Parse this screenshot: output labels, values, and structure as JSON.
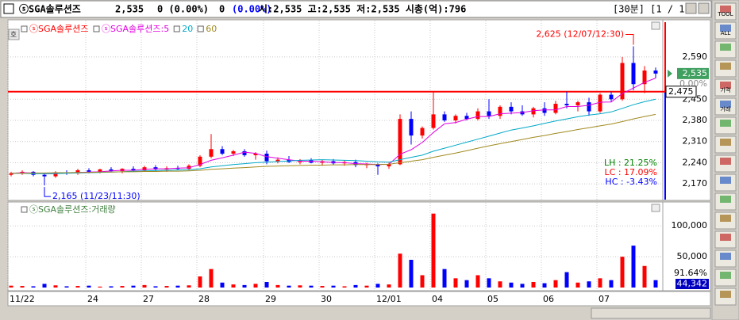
{
  "header": {
    "name": "ⓢSGA솔루션즈",
    "price": "2,535",
    "change": "0 (0.00%)",
    "volume": "0",
    "volume_change": "(0.00%)",
    "ohlc": "시:2,535 고:2,535 저:2,535 시총(억):796",
    "period": "[30분] [1 / 1]"
  },
  "toolbar": [
    "TOOL",
    "ALL",
    "가격",
    "거래"
  ],
  "chart_data": [
    {
      "type": "candlestick",
      "name": "ⓢSGA솔루션즈",
      "side_label": "호",
      "categories": [
        "11/22",
        null,
        null,
        null,
        null,
        null,
        null,
        "24",
        null,
        null,
        null,
        null,
        "27",
        null,
        null,
        null,
        null,
        "28",
        null,
        null,
        null,
        null,
        null,
        "29",
        null,
        null,
        null,
        null,
        "30",
        null,
        null,
        null,
        null,
        "12/01",
        null,
        null,
        null,
        null,
        "04",
        null,
        null,
        null,
        null,
        "05",
        null,
        null,
        null,
        null,
        "06",
        null,
        null,
        null,
        null,
        "07",
        null,
        null,
        null,
        null,
        null
      ],
      "open": [
        2200,
        2205,
        2210,
        2200,
        2195,
        2208,
        2205,
        2215,
        2210,
        2218,
        2212,
        2220,
        2215,
        2225,
        2218,
        2222,
        2220,
        2230,
        2260,
        2285,
        2270,
        2278,
        2265,
        2270,
        2245,
        2250,
        2242,
        2248,
        2240,
        2245,
        2238,
        2242,
        2232,
        2235,
        2228,
        2235,
        2385,
        2330,
        2355,
        2400,
        2380,
        2395,
        2385,
        2410,
        2395,
        2425,
        2410,
        2400,
        2420,
        2405,
        2435,
        2430,
        2440,
        2410,
        2465,
        2450,
        2570,
        2500,
        2545
      ],
      "high": [
        2210,
        2215,
        2212,
        2205,
        2212,
        2215,
        2220,
        2222,
        2220,
        2225,
        2222,
        2228,
        2230,
        2232,
        2228,
        2230,
        2235,
        2265,
        2335,
        2295,
        2282,
        2285,
        2275,
        2280,
        2258,
        2262,
        2252,
        2255,
        2250,
        2252,
        2248,
        2250,
        2240,
        2238,
        2240,
        2400,
        2410,
        2360,
        2475,
        2410,
        2400,
        2405,
        2420,
        2450,
        2430,
        2440,
        2430,
        2425,
        2440,
        2445,
        2475,
        2445,
        2455,
        2470,
        2475,
        2590,
        2625,
        2560,
        2555
      ],
      "low": [
        2195,
        2200,
        2195,
        2165,
        2190,
        2200,
        2200,
        2205,
        2205,
        2210,
        2205,
        2212,
        2210,
        2215,
        2210,
        2215,
        2215,
        2225,
        2255,
        2265,
        2262,
        2260,
        2250,
        2235,
        2238,
        2240,
        2235,
        2238,
        2230,
        2232,
        2230,
        2225,
        2222,
        2200,
        2220,
        2232,
        2300,
        2320,
        2350,
        2375,
        2370,
        2380,
        2380,
        2385,
        2385,
        2400,
        2395,
        2390,
        2395,
        2400,
        2420,
        2410,
        2395,
        2405,
        2440,
        2445,
        2480,
        2470,
        2520
      ],
      "close": [
        2205,
        2210,
        2200,
        2195,
        2208,
        2205,
        2215,
        2210,
        2218,
        2212,
        2220,
        2215,
        2225,
        2218,
        2222,
        2220,
        2230,
        2260,
        2285,
        2270,
        2278,
        2265,
        2270,
        2245,
        2250,
        2242,
        2248,
        2240,
        2245,
        2238,
        2242,
        2232,
        2235,
        2228,
        2235,
        2385,
        2330,
        2355,
        2400,
        2380,
        2395,
        2385,
        2410,
        2395,
        2425,
        2410,
        2400,
        2420,
        2405,
        2435,
        2430,
        2440,
        2410,
        2465,
        2450,
        2570,
        2500,
        2545,
        2535
      ],
      "series": [
        {
          "name": "ⓢSGA솔루션즈:5",
          "color": "#e000e0",
          "values": [
            2205,
            2207,
            2206,
            2204,
            2204,
            2206,
            2208,
            2209,
            2210,
            2213,
            2215,
            2215,
            2218,
            2220,
            2220,
            2222,
            2223,
            2234,
            2248,
            2256,
            2265,
            2275,
            2271,
            2260,
            2255,
            2250,
            2245,
            2245,
            2243,
            2241,
            2240,
            2237,
            2236,
            2234,
            2235,
            2268,
            2283,
            2307,
            2340,
            2369,
            2373,
            2384,
            2393,
            2393,
            2402,
            2404,
            2406,
            2412,
            2415,
            2415,
            2426,
            2426,
            2430,
            2440,
            2441,
            2469,
            2487,
            2506,
            2520
          ]
        },
        {
          "name": "20",
          "color": "#00a8c8",
          "values": [
            2205,
            2205,
            2204,
            2204,
            2204,
            2205,
            2206,
            2207,
            2208,
            2209,
            2210,
            2212,
            2213,
            2214,
            2215,
            2216,
            2217,
            2220,
            2226,
            2230,
            2234,
            2237,
            2240,
            2242,
            2244,
            2246,
            2248,
            2249,
            2250,
            2249,
            2248,
            2247,
            2245,
            2243,
            2242,
            2250,
            2258,
            2265,
            2278,
            2288,
            2298,
            2308,
            2318,
            2328,
            2338,
            2348,
            2355,
            2362,
            2370,
            2378,
            2385,
            2392,
            2398,
            2402,
            2408,
            2420,
            2432,
            2442,
            2450
          ]
        },
        {
          "name": "60",
          "color": "#a08a20",
          "values": [
            2205,
            2205,
            2206,
            2206,
            2207,
            2207,
            2208,
            2208,
            2209,
            2209,
            2210,
            2210,
            2211,
            2211,
            2212,
            2212,
            2213,
            2215,
            2218,
            2220,
            2222,
            2224,
            2226,
            2228,
            2229,
            2230,
            2231,
            2232,
            2232,
            2233,
            2233,
            2234,
            2234,
            2234,
            2235,
            2240,
            2245,
            2250,
            2258,
            2265,
            2272,
            2280,
            2288,
            2296,
            2303,
            2310,
            2317,
            2324,
            2330,
            2337,
            2343,
            2350,
            2356,
            2362,
            2368,
            2376,
            2385,
            2393,
            2400
          ]
        }
      ],
      "up_color": "#ff0000",
      "down_color": "#0000ff",
      "ylim": [
        2118,
        2705
      ],
      "yticks": [
        {
          "value": 2170,
          "label": "2,170"
        },
        {
          "value": 2240,
          "label": "2,240"
        },
        {
          "value": 2310,
          "label": "2,310"
        },
        {
          "value": 2380,
          "label": "2,380"
        },
        {
          "value": 2450,
          "label": "2,450"
        },
        {
          "value": 2590,
          "label": "2,590"
        }
      ],
      "grid": true,
      "reference_line": {
        "value": 2475,
        "label": "2,475",
        "color": "#ff0000"
      },
      "high_annotation": "2,625 (12/07/12:30)",
      "low_annotation": "2,165 (11/23/11:30)",
      "stats": [
        {
          "text": "LH : 21.25%",
          "color": "#008000"
        },
        {
          "text": "LC : 17.09%",
          "color": "#ff0000"
        },
        {
          "text": "HC : -3.43%",
          "color": "#0000ff"
        }
      ],
      "last_label": "2,535",
      "change_label": "0.00%"
    },
    {
      "type": "bar",
      "title": "ⓢSGA솔루션즈:거래량",
      "values": [
        3000,
        2500,
        2000,
        6000,
        3500,
        2000,
        2500,
        3000,
        1500,
        2000,
        2500,
        3000,
        4000,
        2000,
        2500,
        3000,
        3500,
        18000,
        30000,
        8000,
        5000,
        4000,
        6000,
        9000,
        4000,
        3000,
        3500,
        3000,
        2500,
        3000,
        2000,
        4000,
        3000,
        6000,
        5000,
        55000,
        45000,
        20000,
        120000,
        30000,
        15000,
        12000,
        20000,
        15000,
        10000,
        8000,
        6000,
        9000,
        7000,
        12000,
        25000,
        8000,
        10000,
        15000,
        12000,
        50000,
        68000,
        35000,
        12000
      ],
      "ylim": [
        0,
        135000
      ],
      "yticks": [
        {
          "value": 50000,
          "label": "50,000"
        },
        {
          "value": 100000,
          "label": "100,000"
        }
      ],
      "grid": true,
      "ratio_label": "91.64%",
      "current_label": "44,342"
    }
  ]
}
